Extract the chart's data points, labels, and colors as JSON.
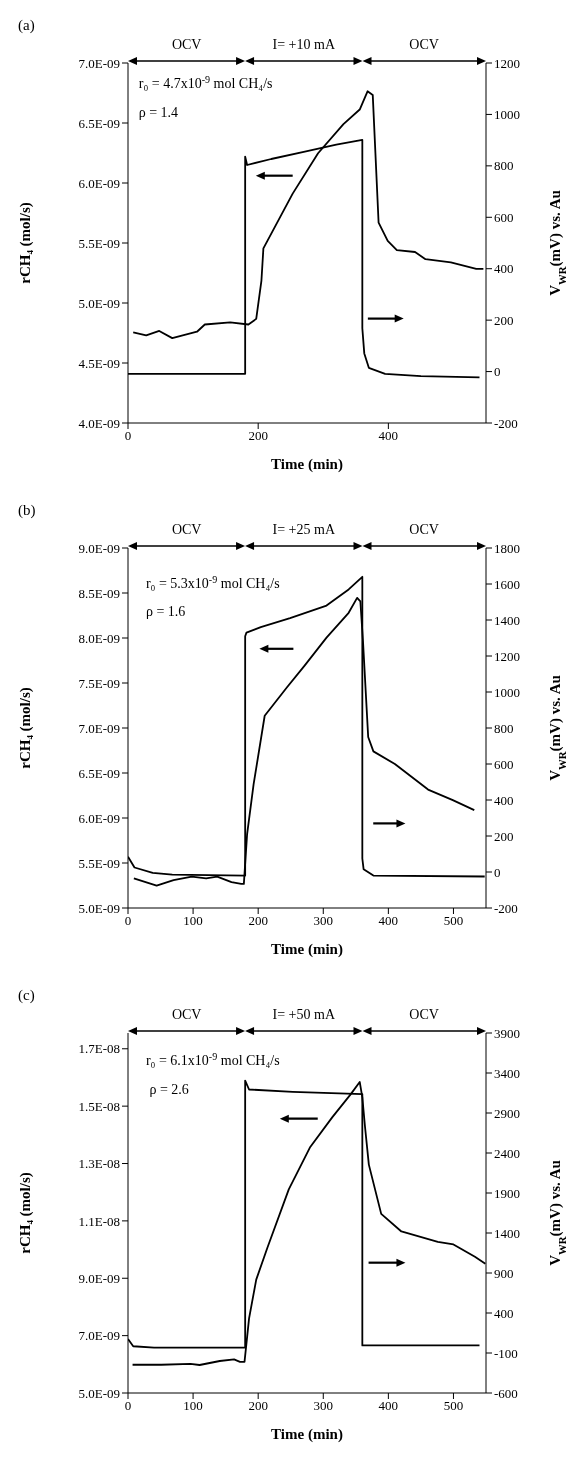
{
  "chart_data": [
    {
      "type": "line",
      "title": "(a)",
      "xlabel": "Time (min)",
      "ylabel": "rCH₄ (mol/s)",
      "y2label": "V$_{WR}$(mV) vs. Au",
      "annotations": [
        "r₀ = 4.7x10$^{-9}$ mol CH₄/s",
        "ρ = 1.4",
        "OCV",
        "I= +10 mA",
        "OCV"
      ],
      "xlim": [
        0,
        550
      ],
      "xticks": [
        0,
        200,
        400
      ],
      "ylim": [
        4e-09,
        7e-09
      ],
      "yticks": [
        {
          "value": 4e-09,
          "label": "4.0E-09"
        },
        {
          "value": 4.5e-09,
          "label": "4.5E-09"
        },
        {
          "value": 5e-09,
          "label": "5.0E-09"
        },
        {
          "value": 5.5e-09,
          "label": "5.5E-09"
        },
        {
          "value": 6e-09,
          "label": "6.0E-09"
        },
        {
          "value": 6.5e-09,
          "label": "6.5E-09"
        },
        {
          "value": 7e-09,
          "label": "7.0E-09"
        }
      ],
      "y2lim": [
        -200,
        1200
      ],
      "y2ticks": [
        -200,
        0,
        200,
        400,
        600,
        800,
        1000,
        1200
      ],
      "series": [
        {
          "color": "#000000",
          "x": [
            0,
            180,
            180,
            183,
            220,
            270,
            320,
            360,
            360,
            363,
            370,
            395,
            450,
            540
          ],
          "values": [
            4.41e-09,
            4.41e-09,
            6.22e-09,
            6.15e-09,
            6.2e-09,
            6.26e-09,
            6.32e-09,
            6.36e-09,
            4.79e-09,
            4.58e-09,
            4.46e-09,
            4.41e-09,
            4.39e-09,
            4.38e-09
          ]
        },
        {
          "color": "#000000",
          "axis": "y2",
          "x": [
            8,
            28,
            48,
            68,
            106,
            118,
            157,
            185,
            197,
            205,
            208,
            253,
            292,
            331,
            356,
            368,
            376,
            385,
            399,
            413,
            441,
            457,
            496,
            535,
            546
          ],
          "values": [
            152,
            141,
            158,
            130,
            155,
            183,
            191,
            183,
            205,
            354,
            479,
            692,
            849,
            962,
            1019,
            1090,
            1076,
            579,
            508,
            472,
            465,
            437,
            425,
            399,
            399
          ]
        }
      ]
    },
    {
      "type": "line",
      "title": "(b)",
      "xlabel": "Time (min)",
      "ylabel": "rCH₄ (mol/s)",
      "y2label": "V$_{WR}$(mV) vs. Au",
      "annotations": [
        "r₀ = 5.3x10$^{-9}$ mol CH₄/s",
        "ρ = 1.6",
        "OCV",
        "I= +25 mA",
        "OCV"
      ],
      "xlim": [
        0,
        550
      ],
      "xticks": [
        0,
        100,
        200,
        300,
        400,
        500
      ],
      "ylim": [
        5e-09,
        9e-09
      ],
      "yticks": [
        {
          "value": 5e-09,
          "label": "5.0E-09"
        },
        {
          "value": 5.5e-09,
          "label": "5.5E-09"
        },
        {
          "value": 6e-09,
          "label": "6.0E-09"
        },
        {
          "value": 6.5e-09,
          "label": "6.5E-09"
        },
        {
          "value": 7e-09,
          "label": "7.0E-09"
        },
        {
          "value": 7.5e-09,
          "label": "7.5E-09"
        },
        {
          "value": 8e-09,
          "label": "8.0E-09"
        },
        {
          "value": 8.5e-09,
          "label": "8.5E-09"
        },
        {
          "value": 9e-09,
          "label": "9.0E-09"
        }
      ],
      "y2lim": [
        -200,
        1800
      ],
      "y2ticks": [
        -200,
        0,
        200,
        400,
        600,
        800,
        1000,
        1200,
        1400,
        1600,
        1800
      ],
      "series": [
        {
          "color": "#000000",
          "x": [
            0,
            10,
            38,
            68,
            180,
            180,
            182,
            204,
            249,
            305,
            339,
            360,
            360,
            362,
            377,
            548
          ],
          "values": [
            5.57e-09,
            5.45e-09,
            5.39e-09,
            5.37e-09,
            5.36e-09,
            8.02e-09,
            8.06e-09,
            8.12e-09,
            8.22e-09,
            8.36e-09,
            8.54e-09,
            8.68e-09,
            5.55e-09,
            5.43e-09,
            5.36e-09,
            5.35e-09
          ]
        },
        {
          "color": "#000000",
          "axis": "y2",
          "x": [
            9,
            44,
            70,
            98,
            120,
            137,
            159,
            174,
            178,
            183,
            193,
            210,
            244,
            271,
            305,
            339,
            352,
            357,
            361,
            369,
            377,
            410,
            461,
            499,
            532
          ],
          "values": [
            -36,
            -76,
            -45,
            -26,
            -36,
            -26,
            -56,
            -66,
            -66,
            211,
            488,
            868,
            1025,
            1145,
            1302,
            1440,
            1523,
            1503,
            1283,
            750,
            670,
            600,
            458,
            399,
            344
          ]
        }
      ]
    },
    {
      "type": "line",
      "title": "(c)",
      "xlabel": "Time (min)",
      "ylabel": "rCH₄ (mol/s)",
      "y2label": "V$_{WR}$(mV) vs. Au",
      "annotations": [
        "r₀ = 6.1x10$^{-9}$ mol CH₄/s",
        "ρ = 2.6",
        "OCV",
        "I= +50 mA",
        "OCV"
      ],
      "xlim": [
        0,
        550
      ],
      "xticks": [
        0,
        100,
        200,
        300,
        400,
        500
      ],
      "ylim": [
        5e-09,
        1.755e-08
      ],
      "yticks": [
        {
          "value": 5e-09,
          "label": "5.0E-09"
        },
        {
          "value": 7e-09,
          "label": "7.0E-09"
        },
        {
          "value": 9e-09,
          "label": "9.0E-09"
        },
        {
          "value": 1.1e-08,
          "label": "1.1E-08"
        },
        {
          "value": 1.3e-08,
          "label": "1.3E-08"
        },
        {
          "value": 1.5e-08,
          "label": "1.5E-08"
        },
        {
          "value": 1.7e-08,
          "label": "1.7E-08"
        }
      ],
      "y2lim": [
        -600,
        3900
      ],
      "y2ticks": [
        -600,
        -100,
        400,
        900,
        1400,
        1900,
        2400,
        2900,
        3400,
        3900
      ],
      "series": [
        {
          "color": "#000000",
          "x": [
            0,
            8,
            40,
            177,
            180,
            180,
            186,
            253,
            360,
            360,
            540
          ],
          "values": [
            6.88e-09,
            6.63e-09,
            6.58e-09,
            6.58e-09,
            6.58e-09,
            1.589e-08,
            1.558e-08,
            1.55e-08,
            1.542e-08,
            6.66e-09,
            6.66e-09
          ]
        },
        {
          "color": "#000000",
          "axis": "y2",
          "x": [
            7,
            51,
            96,
            110,
            141,
            163,
            172,
            179,
            186,
            197,
            214,
            247,
            280,
            314,
            342,
            356,
            360,
            364,
            370,
            389,
            420,
            476,
            500,
            533,
            549
          ],
          "values": [
            -247,
            -247,
            -235,
            -250,
            -200,
            -180,
            -210,
            -210,
            333,
            817,
            1213,
            1946,
            2476,
            2848,
            3133,
            3288,
            3095,
            2738,
            2255,
            1639,
            1419,
            1289,
            1257,
            1102,
            1016
          ]
        }
      ]
    }
  ]
}
